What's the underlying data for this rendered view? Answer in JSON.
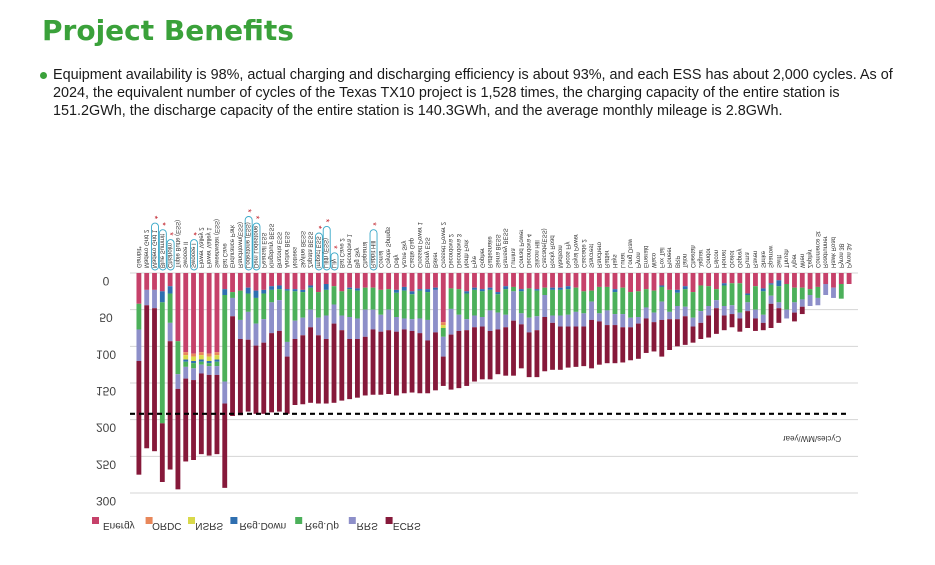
{
  "title": "Project Benefits",
  "bullet": "Equipment availability is 98%, actual charging and discharging efficiency is about 93%, and each ESS has about 2,000 cycles. As of 2024, the equivalent number of cycles of the Texas TX10 project is 1,528 times, the charging capacity of the entire station is 151.2GWh, the discharge capacity of the entire station is 140.3GWh, and the average monthly mileage is 2.8GWh.",
  "chart_data": {
    "type": "bar",
    "stacked": true,
    "inverted": true,
    "mirrored_text": true,
    "ylim": [
      0,
      300
    ],
    "yticks": [
      "0",
      "50",
      "100",
      "150",
      "200",
      "250",
      "300"
    ],
    "reference_line": {
      "value": 192,
      "style": "dashed"
    },
    "annotation": "Cycles/MW/year",
    "legend_position": "bottom",
    "series": [
      {
        "name": "Energy",
        "color": "#c6416a"
      },
      {
        "name": "ORDC",
        "color": "#e8875a"
      },
      {
        "name": "NSRS",
        "color": "#d9d94a"
      },
      {
        "name": "Reg.Down",
        "color": "#2f6fb0"
      },
      {
        "name": "Reg.Up",
        "color": "#4cb05a"
      },
      {
        "name": "RRS",
        "color": "#8d8fc9"
      },
      {
        "name": "ECRS",
        "color": "#86193a"
      }
    ],
    "categories": [
      "Gambit*",
      "Madero Grid 2",
      "Madero Grid 1",
      "Blue Summit",
      "Chisholm",
      "Triple Butte (ESS)",
      "Swoose II",
      "Swoose I",
      "Flower Valley 2",
      "Flower Valley 1",
      "Sweetwater (ESS)",
      "Bat Cave",
      "Endurance Park",
      "Ranchtown(ESS)",
      "Lodestone (ESS)",
      "Dem Lodestone",
      "Pearsall ESS",
      "Kingsbury BESS",
      "Brazoria ESS",
      "Anchor BESS",
      "Notrees",
      "Skyline BESS",
      "Zapata BESS",
      "Impact ESS",
      "Lilith (ESS)",
      "Lily",
      "Bat Cave 2",
      "Decordova 1",
      "Big Sky",
      "Chaparral",
      "Rabbit Hill",
      "Comal",
      "Coyote Springs",
      "Dolly",
      "Azure Sky",
      "Castle Gap",
      "Crossett Power 1",
      "Ebony ESS",
      "Baker",
      "Crossett Power 2",
      "Decordova 2",
      "Decordova 3",
      "North Fork",
      "Frye",
      "Gopher",
      "Rattlesnake",
      "Sierra BESS",
      "Ramsey BESS",
      "Lumina",
      "Conrad Power",
      "Decordova 4",
      "Silicon Hill",
      "Cascade(ESS)",
      "Rocky Road",
      "Madison",
      "Pecos Fly",
      "Royal Power",
      "Cascade 2",
      "Starcrest",
      "Ranchero",
      "Rattler",
      "Hays",
      "Lunar",
      "Long Draw",
      "Pyron",
      "Emerald",
      "Waco",
      "Fox Tail",
      "Pioneer",
      "BRP",
      "Talon",
      "Cheetah",
      "Jaguar",
      "Condor",
      "Falcon",
      "Hornet",
      "Ocelot",
      "Osprey",
      "Puma",
      "Raven",
      "Shrike",
      "Sparrow",
      "Swift",
      "Thrush",
      "Viper",
      "Wren",
      "Zephyr",
      "Commerce St",
      "Roadrunner",
      "Hawk Road",
      "Pyron 3B",
      "Pyron 3A"
    ],
    "values": {
      "Energy": [
        42,
        23,
        23,
        25,
        18,
        93,
        108,
        110,
        108,
        110,
        108,
        22,
        26,
        24,
        20,
        24,
        23,
        18,
        17,
        22,
        22,
        23,
        17,
        26,
        15,
        18,
        25,
        20,
        21,
        20,
        20,
        23,
        22,
        23,
        19,
        25,
        22,
        22,
        20,
        67,
        21,
        22,
        25,
        20,
        22,
        20,
        26,
        18,
        19,
        22,
        21,
        22,
        20,
        20,
        20,
        18,
        20,
        25,
        24,
        19,
        19,
        22,
        20,
        26,
        25,
        22,
        24,
        17,
        23,
        23,
        18,
        26,
        17,
        18,
        22,
        14,
        14,
        14,
        28,
        18,
        21,
        14,
        10,
        15,
        20,
        20,
        22,
        19,
        15,
        20,
        15,
        15,
        15
      ],
      "ORDC": [
        0,
        0,
        0,
        0,
        0,
        0,
        4,
        4,
        4,
        4,
        4,
        0,
        0,
        0,
        0,
        0,
        0,
        0,
        0,
        0,
        0,
        0,
        0,
        0,
        0,
        0,
        0,
        0,
        0,
        0,
        0,
        0,
        0,
        0,
        0,
        0,
        0,
        0,
        0,
        4,
        0,
        0,
        0,
        0,
        0,
        0,
        0,
        0,
        0,
        0,
        0,
        0,
        0,
        0,
        0,
        0,
        0,
        0,
        0,
        0,
        0,
        0,
        0,
        0,
        0,
        0,
        0,
        0,
        0,
        0,
        0,
        0,
        0,
        0,
        0,
        0,
        0,
        0,
        0,
        0,
        0,
        0,
        0,
        0,
        0,
        0,
        0,
        0,
        0,
        0,
        0,
        0,
        0
      ],
      "NSRS": [
        0,
        0,
        0,
        0,
        0,
        0,
        6,
        6,
        6,
        6,
        6,
        0,
        0,
        0,
        0,
        0,
        0,
        0,
        0,
        0,
        0,
        0,
        0,
        0,
        0,
        0,
        0,
        0,
        0,
        0,
        0,
        0,
        0,
        0,
        0,
        0,
        0,
        0,
        0,
        4,
        0,
        0,
        0,
        0,
        0,
        0,
        0,
        0,
        0,
        0,
        0,
        0,
        0,
        0,
        0,
        0,
        0,
        0,
        0,
        0,
        0,
        0,
        0,
        0,
        0,
        0,
        0,
        0,
        0,
        0,
        0,
        0,
        0,
        0,
        0,
        0,
        0,
        0,
        0,
        0,
        0,
        0,
        0,
        0,
        0,
        0,
        0,
        0,
        0,
        0,
        0,
        0,
        0
      ],
      "Reg.Down": [
        0,
        0,
        0,
        15,
        10,
        0,
        3,
        3,
        3,
        3,
        3,
        8,
        0,
        0,
        8,
        10,
        5,
        5,
        5,
        2,
        3,
        3,
        3,
        0,
        8,
        0,
        0,
        2,
        3,
        0,
        0,
        0,
        0,
        4,
        5,
        4,
        2,
        4,
        3,
        0,
        0,
        0,
        3,
        3,
        3,
        3,
        3,
        4,
        0,
        3,
        0,
        2,
        0,
        3,
        3,
        4,
        0,
        0,
        0,
        0,
        0,
        4,
        0,
        0,
        0,
        0,
        0,
        2,
        0,
        4,
        4,
        0,
        0,
        0,
        0,
        3,
        0,
        0,
        2,
        0,
        4,
        2,
        8,
        0,
        0,
        0,
        0,
        0,
        0,
        0,
        0,
        0,
        0
      ],
      "Reg.Up": [
        35,
        0,
        0,
        165,
        40,
        45,
        7,
        7,
        4,
        4,
        6,
        118,
        8,
        40,
        25,
        35,
        35,
        17,
        15,
        70,
        40,
        35,
        30,
        35,
        35,
        25,
        33,
        38,
        38,
        30,
        30,
        34,
        28,
        33,
        38,
        34,
        38,
        38,
        0,
        12,
        28,
        35,
        35,
        35,
        35,
        28,
        25,
        35,
        6,
        30,
        40,
        35,
        10,
        35,
        35,
        35,
        33,
        30,
        15,
        36,
        32,
        30,
        36,
        35,
        35,
        25,
        30,
        20,
        30,
        18,
        24,
        35,
        35,
        27,
        15,
        28,
        30,
        40,
        10,
        32,
        32,
        15,
        22,
        35,
        20,
        16,
        8,
        15,
        0,
        0,
        20,
        0,
        0
      ],
      "RRS": [
        43,
        21,
        25,
        0,
        25,
        20,
        16,
        16,
        12,
        12,
        12,
        30,
        25,
        26,
        38,
        30,
        32,
        42,
        42,
        20,
        25,
        24,
        24,
        24,
        32,
        26,
        20,
        30,
        28,
        37,
        27,
        23,
        28,
        20,
        15,
        16,
        20,
        28,
        58,
        27,
        35,
        22,
        15,
        16,
        13,
        28,
        23,
        17,
        40,
        15,
        20,
        19,
        30,
        10,
        15,
        16,
        20,
        18,
        25,
        11,
        20,
        15,
        18,
        13,
        9,
        15,
        13,
        25,
        10,
        18,
        13,
        12,
        16,
        13,
        11,
        13,
        12,
        8,
        12,
        12,
        11,
        11,
        8,
        12,
        14,
        10,
        15,
        10,
        15,
        14,
        0,
        0,
        0
      ],
      "ECRS": [
        155,
        195,
        195,
        80,
        175,
        137,
        113,
        109,
        110,
        110,
        108,
        115,
        136,
        104,
        98,
        93,
        97,
        108,
        110,
        78,
        90,
        94,
        103,
        93,
        88,
        108,
        96,
        82,
        80,
        80,
        89,
        86,
        87,
        87,
        87,
        84,
        82,
        72,
        79,
        40,
        75,
        78,
        76,
        74,
        72,
        66,
        61,
        66,
        75,
        60,
        61,
        64,
        74,
        64,
        59,
        56,
        55,
        54,
        66,
        59,
        52,
        52,
        48,
        45,
        48,
        47,
        40,
        50,
        42,
        37,
        39,
        22,
        22,
        30,
        35,
        20,
        18,
        18,
        23,
        17,
        10,
        33,
        20,
        0,
        12,
        10,
        0,
        0,
        0,
        0,
        0,
        0,
        0
      ]
    },
    "highlighted": [
      "Madero Grid 1",
      "Blue Summit",
      "Chisholm",
      "Swoose I",
      "Lodestone (ESS)",
      "Dem Lodestone",
      "Impact ESS",
      "Lilith (ESS)",
      "Lily",
      "Rabbit Hill"
    ]
  }
}
